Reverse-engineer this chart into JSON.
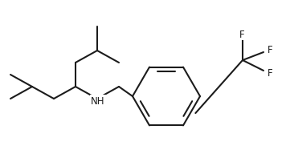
{
  "background_color": "#ffffff",
  "line_color": "#1c1c1c",
  "line_width": 1.5,
  "font_size": 8.5,
  "nh_label": "NH",
  "f_labels": [
    "F",
    "F",
    "F"
  ],
  "figsize": [
    3.56,
    1.87
  ],
  "dpi": 100
}
